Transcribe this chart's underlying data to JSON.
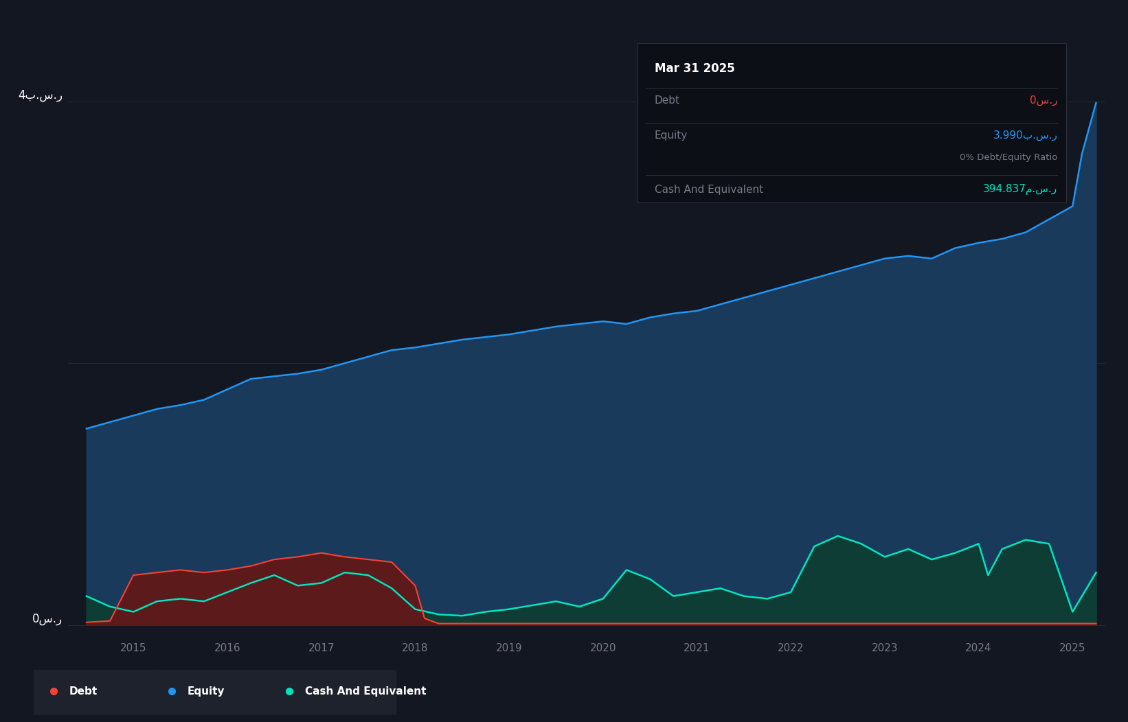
{
  "bg_color": "#131722",
  "equity_color": "#2196f3",
  "equity_fill": "#1a3a5c",
  "debt_color": "#f44336",
  "debt_fill": "#5c1a1a",
  "cash_color": "#00e5c0",
  "cash_fill": "#0d3d35",
  "grid_color": "#2a2e39",
  "axis_color": "#787b86",
  "legend_bg": "#1e222d",
  "tooltip_bg": "#131722",
  "y_label_4b": "4ب.س.ر",
  "y_label_0": "0س.ر",
  "tooltip_date": "Mar 31 2025",
  "tooltip_debt_label": "Debt",
  "tooltip_debt_value": "0س.ر",
  "tooltip_equity_label": "Equity",
  "tooltip_equity_value": "3.990ب.س.ر",
  "tooltip_ratio": "0% Debt/Equity Ratio",
  "tooltip_cash_label": "Cash And Equivalent",
  "tooltip_cash_value": "394.837م.س.ر",
  "ylim": [
    -0.08,
    4.5
  ],
  "xlim": [
    2014.3,
    2025.35
  ],
  "equity_x": [
    2014.5,
    2014.75,
    2015.0,
    2015.25,
    2015.5,
    2015.75,
    2016.0,
    2016.25,
    2016.5,
    2016.75,
    2017.0,
    2017.25,
    2017.5,
    2017.75,
    2018.0,
    2018.25,
    2018.5,
    2018.75,
    2019.0,
    2019.25,
    2019.5,
    2019.75,
    2020.0,
    2020.25,
    2020.5,
    2020.75,
    2021.0,
    2021.25,
    2021.5,
    2021.75,
    2022.0,
    2022.25,
    2022.5,
    2022.75,
    2023.0,
    2023.25,
    2023.5,
    2023.75,
    2024.0,
    2024.25,
    2024.5,
    2024.75,
    2025.0,
    2025.1,
    2025.25
  ],
  "equity_y": [
    1.5,
    1.55,
    1.6,
    1.65,
    1.68,
    1.72,
    1.8,
    1.88,
    1.9,
    1.92,
    1.95,
    2.0,
    2.05,
    2.1,
    2.12,
    2.15,
    2.18,
    2.2,
    2.22,
    2.25,
    2.28,
    2.3,
    2.32,
    2.3,
    2.35,
    2.38,
    2.4,
    2.45,
    2.5,
    2.55,
    2.6,
    2.65,
    2.7,
    2.75,
    2.8,
    2.82,
    2.8,
    2.88,
    2.92,
    2.95,
    3.0,
    3.1,
    3.2,
    3.6,
    3.99
  ],
  "debt_x": [
    2014.5,
    2014.75,
    2015.0,
    2015.25,
    2015.5,
    2015.75,
    2016.0,
    2016.25,
    2016.5,
    2016.75,
    2017.0,
    2017.25,
    2017.5,
    2017.75,
    2018.0,
    2018.1,
    2018.25,
    2018.5,
    2018.75,
    2019.0,
    2019.25,
    2019.5,
    2019.75,
    2020.0,
    2020.25,
    2020.5,
    2020.75,
    2021.0,
    2021.25,
    2021.5,
    2021.75,
    2022.0,
    2022.25,
    2022.5,
    2022.75,
    2023.0,
    2023.25,
    2023.5,
    2023.75,
    2024.0,
    2024.25,
    2024.5,
    2024.75,
    2025.0,
    2025.25
  ],
  "debt_y": [
    0.02,
    0.03,
    0.38,
    0.4,
    0.42,
    0.4,
    0.42,
    0.45,
    0.5,
    0.52,
    0.55,
    0.52,
    0.5,
    0.48,
    0.3,
    0.05,
    0.01,
    0.01,
    0.01,
    0.01,
    0.01,
    0.01,
    0.01,
    0.01,
    0.01,
    0.01,
    0.01,
    0.01,
    0.01,
    0.01,
    0.01,
    0.01,
    0.01,
    0.01,
    0.01,
    0.01,
    0.01,
    0.01,
    0.01,
    0.01,
    0.01,
    0.01,
    0.01,
    0.01,
    0.01
  ],
  "cash_x": [
    2014.5,
    2014.75,
    2015.0,
    2015.25,
    2015.5,
    2015.75,
    2016.0,
    2016.25,
    2016.5,
    2016.75,
    2017.0,
    2017.25,
    2017.5,
    2017.75,
    2018.0,
    2018.25,
    2018.5,
    2018.75,
    2019.0,
    2019.25,
    2019.5,
    2019.75,
    2020.0,
    2020.25,
    2020.5,
    2020.75,
    2021.0,
    2021.25,
    2021.5,
    2021.75,
    2022.0,
    2022.25,
    2022.5,
    2022.75,
    2023.0,
    2023.25,
    2023.5,
    2023.75,
    2024.0,
    2024.1,
    2024.25,
    2024.5,
    2024.75,
    2025.0,
    2025.25
  ],
  "cash_y": [
    0.22,
    0.14,
    0.1,
    0.18,
    0.2,
    0.18,
    0.25,
    0.32,
    0.38,
    0.3,
    0.32,
    0.4,
    0.38,
    0.28,
    0.12,
    0.08,
    0.07,
    0.1,
    0.12,
    0.15,
    0.18,
    0.14,
    0.2,
    0.42,
    0.35,
    0.22,
    0.25,
    0.28,
    0.22,
    0.2,
    0.25,
    0.6,
    0.68,
    0.62,
    0.52,
    0.58,
    0.5,
    0.55,
    0.62,
    0.38,
    0.58,
    0.65,
    0.62,
    0.1,
    0.4
  ]
}
